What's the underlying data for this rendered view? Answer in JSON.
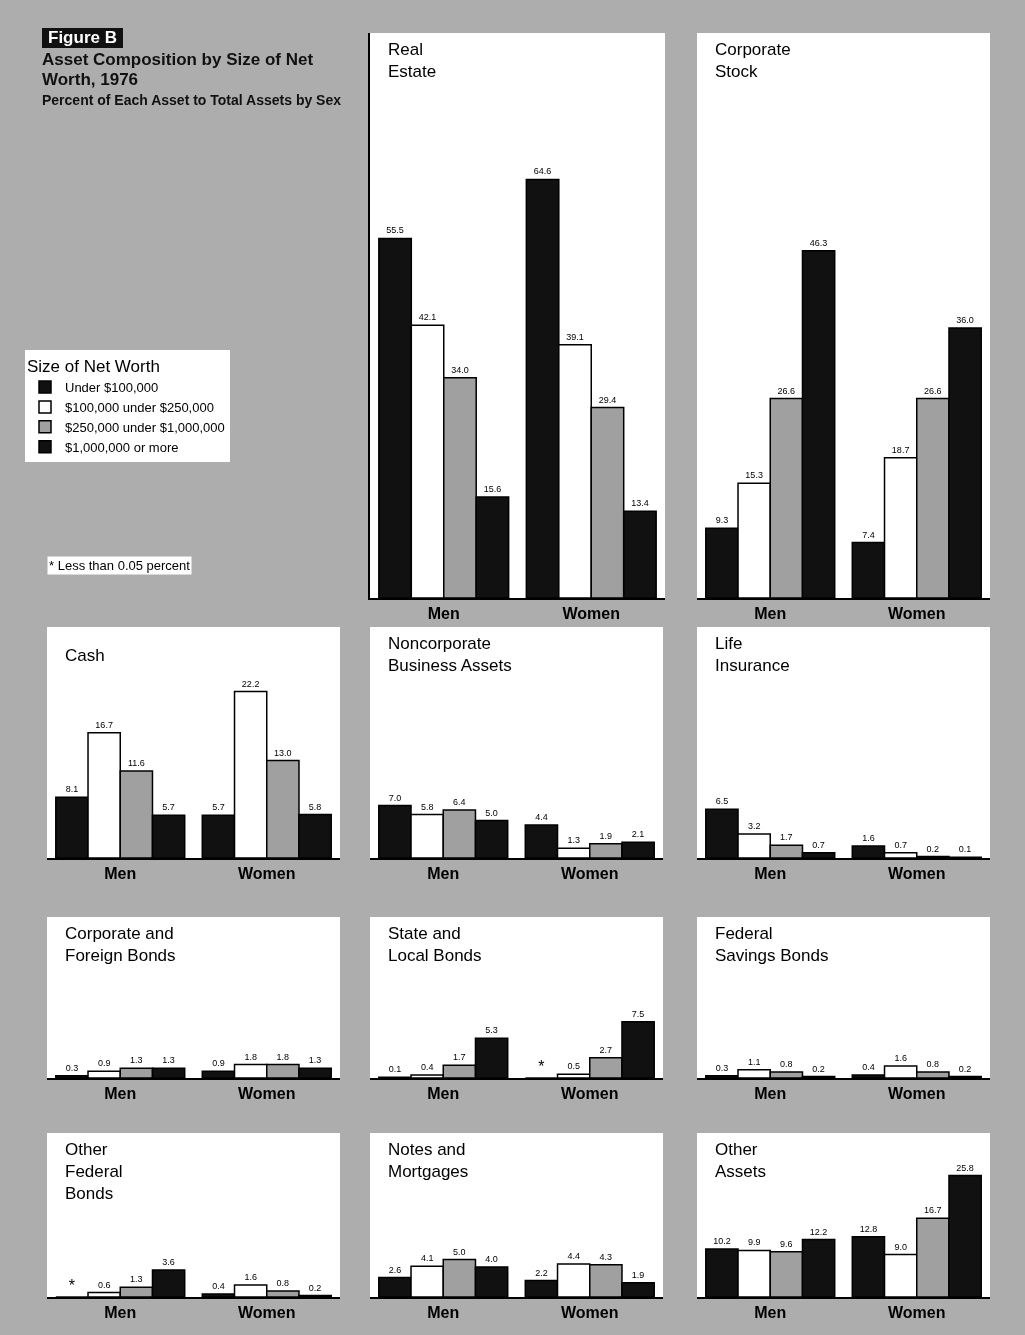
{
  "chart_data": [
    {
      "type": "other",
      "title": "Figure B",
      "subtitle": "Asset Composition by Size of Net Worth, 1976",
      "annotations": [
        "Percent of Each Asset to Total Assets by Sex"
      ]
    },
    {
      "type": "bar",
      "title": "Real\nEstate",
      "categories": [
        "Men",
        "Women"
      ],
      "data_labels": true,
      "legend": "left",
      "legend_title": "Size of Net Worth",
      "annotations": [
        "* Less than 0.05 percent"
      ],
      "series": [
        {
          "name": "Under $100,000",
          "color": "#111111",
          "values": [
            55.5,
            64.6
          ]
        },
        {
          "name": "$100,000 under $250,000",
          "color": "#ffffff",
          "values": [
            42.1,
            39.1
          ]
        },
        {
          "name": "$250,000 under $1,000,000",
          "color": "#a0a0a0",
          "values": [
            34.0,
            29.4
          ],
          "value_labels": [
            "34.0",
            "29.4"
          ]
        },
        {
          "name": "$1,000,000 or more",
          "color": "#111111",
          "values": [
            15.6,
            13.4
          ]
        }
      ]
    },
    {
      "type": "bar",
      "title": "Corporate\nStock",
      "categories": [
        "Men",
        "Women"
      ],
      "data_labels": true,
      "series": [
        {
          "color": "#111111",
          "values": [
            9.3,
            7.4
          ]
        },
        {
          "color": "#ffffff",
          "values": [
            15.3,
            18.7
          ]
        },
        {
          "color": "#a0a0a0",
          "values": [
            26.6,
            26.6
          ]
        },
        {
          "color": "#111111",
          "values": [
            46.3,
            36.0
          ],
          "value_labels": [
            "46.3",
            "36.0"
          ]
        }
      ]
    },
    {
      "type": "bar",
      "title": "Cash",
      "categories": [
        "Men",
        "Women"
      ],
      "data_labels": true,
      "series": [
        {
          "color": "#111111",
          "values": [
            8.1,
            5.7
          ]
        },
        {
          "color": "#ffffff",
          "values": [
            16.7,
            22.2
          ]
        },
        {
          "color": "#a0a0a0",
          "values": [
            11.6,
            13.0
          ],
          "value_labels": [
            "11.6",
            "13.0"
          ]
        },
        {
          "color": "#111111",
          "values": [
            5.7,
            5.8
          ]
        }
      ]
    },
    {
      "type": "bar",
      "title": "Noncorporate\nBusiness Assets",
      "categories": [
        "Men",
        "Women"
      ],
      "data_labels": true,
      "series": [
        {
          "color": "#111111",
          "values": [
            7.0,
            4.4
          ],
          "value_labels": [
            "7.0",
            "4.4"
          ]
        },
        {
          "color": "#ffffff",
          "values": [
            5.8,
            1.3
          ]
        },
        {
          "color": "#a0a0a0",
          "values": [
            6.4,
            1.9
          ]
        },
        {
          "color": "#111111",
          "values": [
            5.0,
            2.1
          ],
          "value_labels": [
            "5.0",
            "2.1"
          ]
        }
      ]
    },
    {
      "type": "bar",
      "title": "Life\nInsurance",
      "categories": [
        "Men",
        "Women"
      ],
      "data_labels": true,
      "series": [
        {
          "color": "#111111",
          "values": [
            6.5,
            1.6
          ]
        },
        {
          "color": "#ffffff",
          "values": [
            3.2,
            0.7
          ]
        },
        {
          "color": "#a0a0a0",
          "values": [
            1.7,
            0.2
          ]
        },
        {
          "color": "#111111",
          "values": [
            0.7,
            0.1
          ]
        }
      ]
    },
    {
      "type": "bar",
      "title": "Corporate and\nForeign Bonds",
      "categories": [
        "Men",
        "Women"
      ],
      "data_labels": true,
      "series": [
        {
          "color": "#111111",
          "values": [
            0.3,
            0.9
          ]
        },
        {
          "color": "#ffffff",
          "values": [
            0.9,
            1.8
          ]
        },
        {
          "color": "#a0a0a0",
          "values": [
            1.3,
            1.8
          ]
        },
        {
          "color": "#111111",
          "values": [
            1.3,
            1.3
          ]
        }
      ]
    },
    {
      "type": "bar",
      "title": "State and\nLocal Bonds",
      "categories": [
        "Men",
        "Women"
      ],
      "data_labels": true,
      "series": [
        {
          "color": "#111111",
          "values": [
            0.1,
            0
          ],
          "value_labels": [
            "0.1",
            "*"
          ]
        },
        {
          "color": "#ffffff",
          "values": [
            0.4,
            0.5
          ]
        },
        {
          "color": "#a0a0a0",
          "values": [
            1.7,
            2.7
          ]
        },
        {
          "color": "#111111",
          "values": [
            5.3,
            7.5
          ]
        }
      ]
    },
    {
      "type": "bar",
      "title": "Federal\nSavings Bonds",
      "categories": [
        "Men",
        "Women"
      ],
      "data_labels": true,
      "series": [
        {
          "color": "#111111",
          "values": [
            0.3,
            0.4
          ]
        },
        {
          "color": "#ffffff",
          "values": [
            1.1,
            1.6
          ]
        },
        {
          "color": "#a0a0a0",
          "values": [
            0.8,
            0.8
          ]
        },
        {
          "color": "#111111",
          "values": [
            0.2,
            0.2
          ]
        }
      ]
    },
    {
      "type": "bar",
      "title": "Other\nFederal\nBonds",
      "categories": [
        "Men",
        "Women"
      ],
      "data_labels": true,
      "series": [
        {
          "color": "#111111",
          "values": [
            0,
            0.4
          ],
          "value_labels": [
            "*",
            "0.4"
          ]
        },
        {
          "color": "#ffffff",
          "values": [
            0.6,
            1.6
          ]
        },
        {
          "color": "#a0a0a0",
          "values": [
            1.3,
            0.8
          ]
        },
        {
          "color": "#111111",
          "values": [
            3.6,
            0.2
          ]
        }
      ]
    },
    {
      "type": "bar",
      "title": "Notes and\nMortgages",
      "categories": [
        "Men",
        "Women"
      ],
      "data_labels": true,
      "series": [
        {
          "color": "#111111",
          "values": [
            2.6,
            2.2
          ]
        },
        {
          "color": "#ffffff",
          "values": [
            4.1,
            4.4
          ]
        },
        {
          "color": "#a0a0a0",
          "values": [
            5.0,
            4.3
          ],
          "value_labels": [
            "5.0",
            "4.3"
          ]
        },
        {
          "color": "#111111",
          "values": [
            4.0,
            1.9
          ],
          "value_labels": [
            "4.0",
            "1.9"
          ]
        }
      ]
    },
    {
      "type": "bar",
      "title": "Other\nAssets",
      "categories": [
        "Men",
        "Women"
      ],
      "data_labels": true,
      "series": [
        {
          "color": "#111111",
          "values": [
            10.2,
            12.8
          ]
        },
        {
          "color": "#ffffff",
          "values": [
            9.9,
            9.0
          ],
          "value_labels": [
            "9.9",
            "9.0"
          ]
        },
        {
          "color": "#a0a0a0",
          "values": [
            9.6,
            16.7
          ]
        },
        {
          "color": "#111111",
          "values": [
            12.2,
            25.8
          ]
        }
      ]
    }
  ]
}
